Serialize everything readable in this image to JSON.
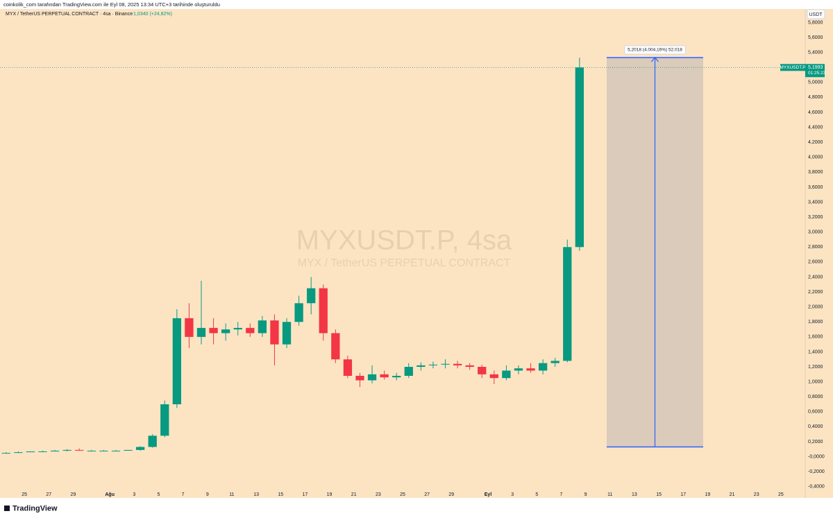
{
  "header": {
    "attribution": "coinkolik_com tarafından TradingView.com ile Eyl 08, 2025 13:34 UTC+3 tarihinde oluşturuldu",
    "brand": "TradingView"
  },
  "chart_data": {
    "type": "candlestick",
    "legend_title": "MYX / TetherUS PERPETUAL CONTRACT · 4sa · Binance",
    "legend_change": "+1,0340 (+24,82%)",
    "watermark": "MYXUSDT.P, 4sa",
    "watermark_subtitle": "MYX / TetherUS PERPETUAL CONTRACT",
    "currency": "USDT",
    "up_color": "#089981",
    "down_color": "#f23645",
    "grid": false,
    "categories": [
      null,
      null,
      "25",
      null,
      "27",
      null,
      "29",
      null,
      null,
      "Ağu",
      null,
      "3",
      null,
      "5",
      null,
      "7",
      null,
      "9",
      null,
      "11",
      null,
      "13",
      null,
      "15",
      null,
      "17",
      null,
      "19",
      null,
      "21",
      null,
      "23",
      null,
      "25",
      null,
      "27",
      null,
      "29",
      null,
      null,
      "Eyl",
      null,
      "3",
      null,
      "5",
      null,
      "7",
      null,
      "9",
      null,
      "11",
      null,
      "13",
      null,
      "15",
      null,
      "17",
      null,
      "19",
      null,
      "21",
      null,
      "23",
      null,
      "25",
      null
    ],
    "open": [
      0.05,
      0.05,
      0.06,
      0.07,
      0.07,
      0.08,
      0.09,
      0.08,
      0.08,
      0.08,
      0.08,
      0.09,
      0.13,
      0.28,
      0.7,
      1.85,
      1.6,
      1.72,
      1.65,
      1.7,
      1.72,
      1.65,
      1.82,
      1.5,
      1.8,
      2.05,
      2.25,
      1.65,
      1.3,
      1.08,
      1.02,
      1.1,
      1.06,
      1.08,
      1.2,
      1.22,
      1.23,
      1.24,
      1.22,
      1.2,
      1.1,
      1.05,
      1.15,
      1.18,
      1.15,
      1.25,
      1.28,
      2.8,
      null,
      null,
      null,
      null,
      null,
      null,
      null,
      null,
      null,
      null,
      null,
      null,
      null,
      null,
      null,
      null,
      null,
      null
    ],
    "high": [
      0.06,
      0.07,
      0.07,
      0.08,
      0.09,
      0.1,
      0.11,
      0.09,
      0.09,
      0.09,
      0.09,
      0.14,
      0.3,
      0.75,
      1.97,
      2.05,
      2.35,
      1.85,
      1.78,
      1.8,
      1.78,
      1.88,
      1.9,
      1.85,
      2.15,
      2.4,
      2.3,
      1.7,
      1.35,
      1.12,
      1.22,
      1.15,
      1.12,
      1.25,
      1.26,
      1.27,
      1.3,
      1.28,
      1.25,
      1.23,
      1.15,
      1.22,
      1.22,
      1.25,
      1.3,
      1.32,
      2.9,
      5.33,
      null,
      null,
      null,
      null,
      null,
      null,
      null,
      null,
      null,
      null,
      null,
      null,
      null,
      null,
      null,
      null,
      null,
      null
    ],
    "low": [
      0.04,
      0.05,
      0.06,
      0.06,
      0.07,
      0.07,
      0.08,
      0.07,
      0.08,
      0.08,
      0.08,
      0.08,
      0.12,
      0.26,
      0.65,
      1.45,
      1.5,
      1.5,
      1.55,
      1.62,
      1.6,
      1.6,
      1.22,
      1.45,
      1.75,
      1.9,
      1.55,
      1.25,
      1.05,
      0.93,
      0.98,
      1.03,
      1.02,
      1.05,
      1.15,
      1.18,
      1.18,
      1.18,
      1.16,
      1.05,
      0.97,
      1.02,
      1.1,
      1.12,
      1.1,
      1.2,
      1.26,
      2.75,
      null,
      null,
      null,
      null,
      null,
      null,
      null,
      null,
      null,
      null,
      null,
      null,
      null,
      null,
      null,
      null,
      null,
      null
    ],
    "close": [
      0.05,
      0.06,
      0.07,
      0.07,
      0.08,
      0.09,
      0.08,
      0.08,
      0.08,
      0.08,
      0.09,
      0.13,
      0.28,
      0.7,
      1.85,
      1.6,
      1.72,
      1.65,
      1.7,
      1.72,
      1.65,
      1.82,
      1.5,
      1.8,
      2.05,
      2.25,
      1.65,
      1.3,
      1.08,
      1.02,
      1.1,
      1.06,
      1.08,
      1.2,
      1.22,
      1.23,
      1.24,
      1.22,
      1.2,
      1.1,
      1.05,
      1.15,
      1.18,
      1.15,
      1.25,
      1.28,
      2.8,
      5.1993,
      null,
      null,
      null,
      null,
      null,
      null,
      null,
      null,
      null,
      null,
      null,
      null,
      null,
      null,
      null,
      null,
      null,
      null
    ],
    "ylim": [
      -0.43,
      5.98
    ],
    "yticks": [
      {
        "value": -0.4,
        "label": "-0,4000"
      },
      {
        "value": -0.2,
        "label": "-0,2000"
      },
      {
        "value": 0,
        "label": "-0,0000"
      },
      {
        "value": 0.2,
        "label": "0,2000"
      },
      {
        "value": 0.4,
        "label": "0,4000"
      },
      {
        "value": 0.6,
        "label": "0,6000"
      },
      {
        "value": 0.8,
        "label": "0,8000"
      },
      {
        "value": 1.0,
        "label": "1,0000"
      },
      {
        "value": 1.2,
        "label": "1,2000"
      },
      {
        "value": 1.4,
        "label": "1,4000"
      },
      {
        "value": 1.6,
        "label": "1,6000"
      },
      {
        "value": 1.8,
        "label": "1,8000"
      },
      {
        "value": 2.0,
        "label": "2,0000"
      },
      {
        "value": 2.2,
        "label": "2,2000"
      },
      {
        "value": 2.4,
        "label": "2,4000"
      },
      {
        "value": 2.6,
        "label": "2,6000"
      },
      {
        "value": 2.8,
        "label": "2,8000"
      },
      {
        "value": 3.0,
        "label": "3,0000"
      },
      {
        "value": 3.2,
        "label": "3,2000"
      },
      {
        "value": 3.4,
        "label": "3,4000"
      },
      {
        "value": 3.6,
        "label": "3,6000"
      },
      {
        "value": 3.8,
        "label": "3,8000"
      },
      {
        "value": 4.0,
        "label": "4,0000"
      },
      {
        "value": 4.2,
        "label": "4,2000"
      },
      {
        "value": 4.4,
        "label": "4,4000"
      },
      {
        "value": 4.6,
        "label": "4,6000"
      },
      {
        "value": 4.8,
        "label": "4,8000"
      },
      {
        "value": 5.0,
        "label": "5,0000"
      },
      {
        "value": 5.2,
        "label": "5,2000"
      },
      {
        "value": 5.4,
        "label": "5,4000"
      },
      {
        "value": 5.6,
        "label": "5,6000"
      },
      {
        "value": 5.8,
        "label": "5,8000"
      }
    ],
    "price_tag": {
      "symbol": "MYXUSDT.P",
      "value": 5.1993,
      "label": "5,1993",
      "countdown": "01:25:23",
      "color": "#089981"
    },
    "measure": {
      "label": "5,2018 (4.004,16%) 52.018",
      "from": 0.1299,
      "to": 5.3317,
      "color": "#2962ff"
    }
  }
}
